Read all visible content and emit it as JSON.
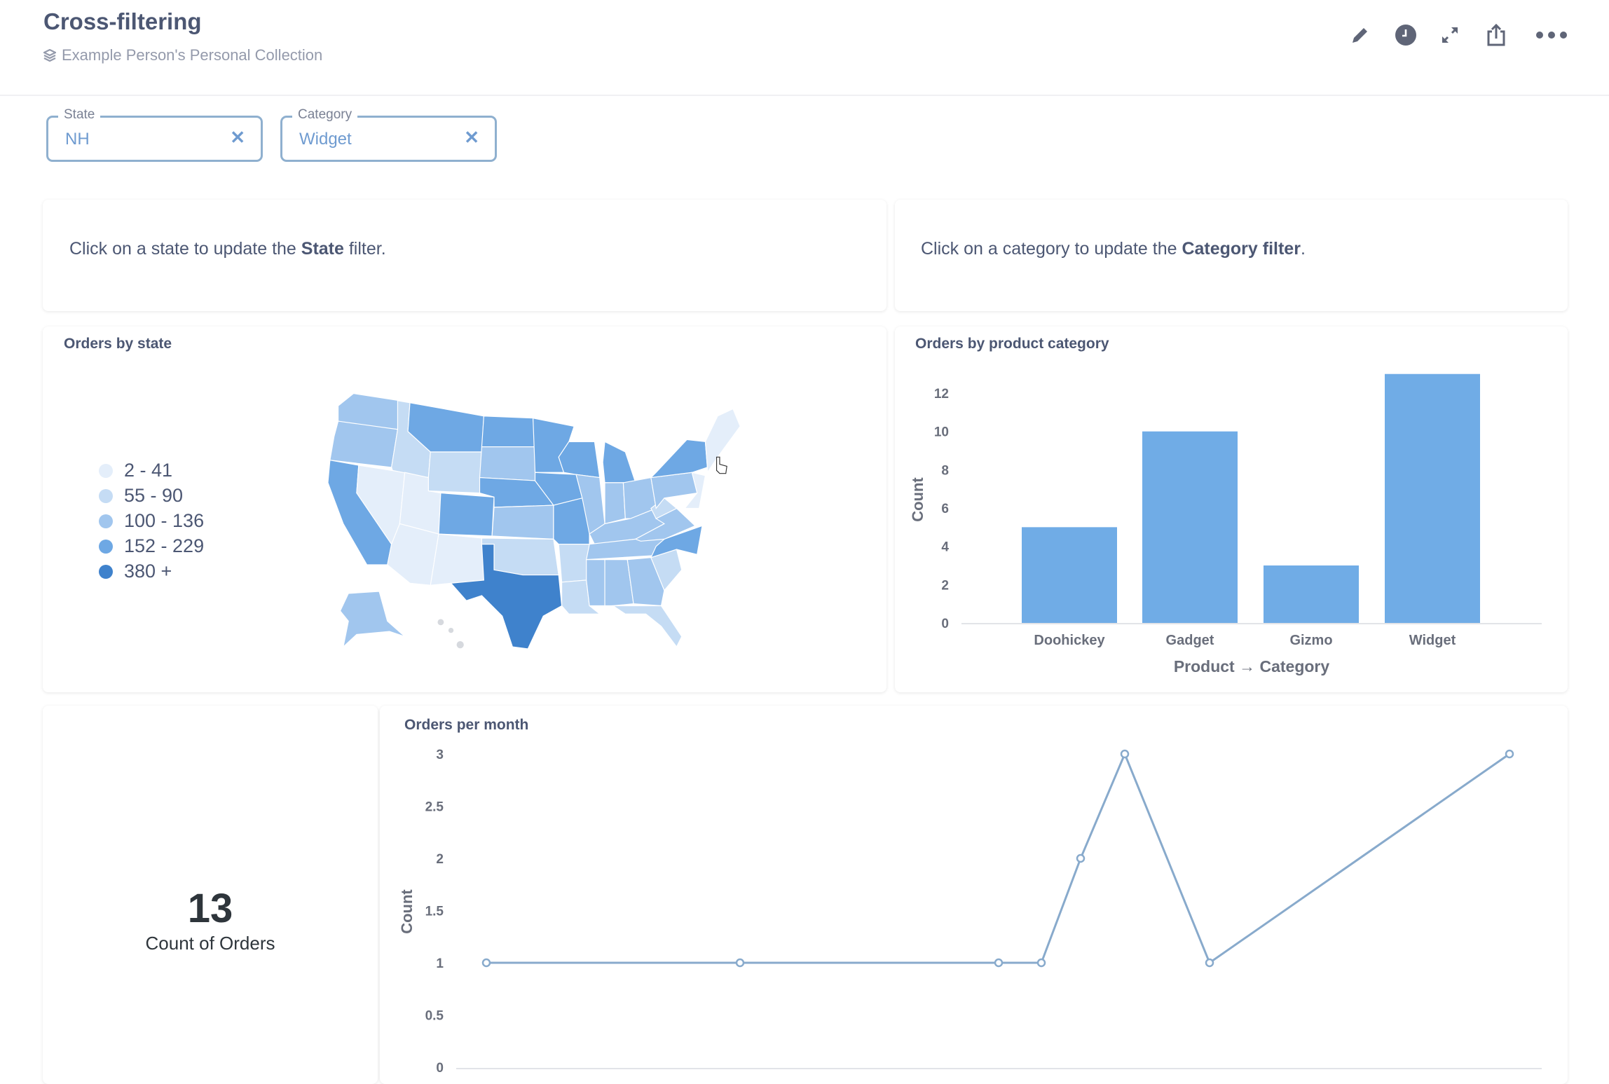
{
  "header": {
    "title": "Cross-filtering",
    "collection": "Example Person's Personal Collection",
    "icons": [
      "pencil-icon",
      "clock-icon",
      "expand-icon",
      "share-icon",
      "more-icon"
    ]
  },
  "filters": [
    {
      "label": "State",
      "value": "NH"
    },
    {
      "label": "Category",
      "value": "Widget"
    }
  ],
  "text_cards": {
    "left": {
      "prefix": "Click on a state to update the ",
      "bold": "State",
      "suffix": " filter."
    },
    "right": {
      "prefix": "Click on a category to update the ",
      "bold": "Category filter",
      "suffix": "."
    }
  },
  "map_card": {
    "title": "Orders by state",
    "legend": [
      {
        "label": "2 - 41",
        "color": "#e4eefa"
      },
      {
        "label": "55 - 90",
        "color": "#c5dcf4"
      },
      {
        "label": "100 - 136",
        "color": "#a1c6ee"
      },
      {
        "label": "152 - 229",
        "color": "#6ea8e4"
      },
      {
        "label": "380 +",
        "color": "#3f82cc"
      }
    ],
    "state_buckets": {
      "WA": 2,
      "OR": 2,
      "CA": 3,
      "NV": 0,
      "ID": 1,
      "MT": 3,
      "WY": 1,
      "UT": 0,
      "AZ": 0,
      "CO": 3,
      "NM": 0,
      "ND": 3,
      "SD": 2,
      "NE": 3,
      "KS": 2,
      "OK": 1,
      "TX": 4,
      "MN": 3,
      "IA": 3,
      "MO": 3,
      "AR": 1,
      "LA": 1,
      "WI": 3,
      "IL": 2,
      "MI": 3,
      "IN": 2,
      "OH": 2,
      "KY": 2,
      "TN": 2,
      "MS": 2,
      "AL": 2,
      "GA": 2,
      "FL": 1,
      "SC": 1,
      "NC": 3,
      "VA": 2,
      "WV": 1,
      "PA": 2,
      "NY": 3,
      "NewEngland": 0,
      "NJ": 0,
      "AK": 2
    }
  },
  "chart_data": [
    {
      "type": "bar",
      "title": "Orders by product category",
      "categories": [
        "Doohickey",
        "Gadget",
        "Gizmo",
        "Widget"
      ],
      "values": [
        5,
        10,
        3,
        13
      ],
      "xlabel": "Product → Category",
      "ylabel": "Count",
      "yticks": [
        "0",
        "2",
        "4",
        "6",
        "8",
        "10",
        "12"
      ],
      "ylim": [
        0,
        13
      ],
      "color": "#70acE6"
    },
    {
      "type": "line",
      "title": "Orders per month",
      "ylabel": "Count",
      "values": [
        1,
        1,
        1,
        1,
        2,
        3,
        1,
        3
      ],
      "yticks": [
        "0",
        "0.5",
        "1",
        "1.5",
        "2",
        "2.5",
        "3"
      ],
      "ylim": [
        0,
        3
      ],
      "color": "#88aacc"
    }
  ],
  "scalar_card": {
    "value": "13",
    "label": "Count of Orders"
  }
}
